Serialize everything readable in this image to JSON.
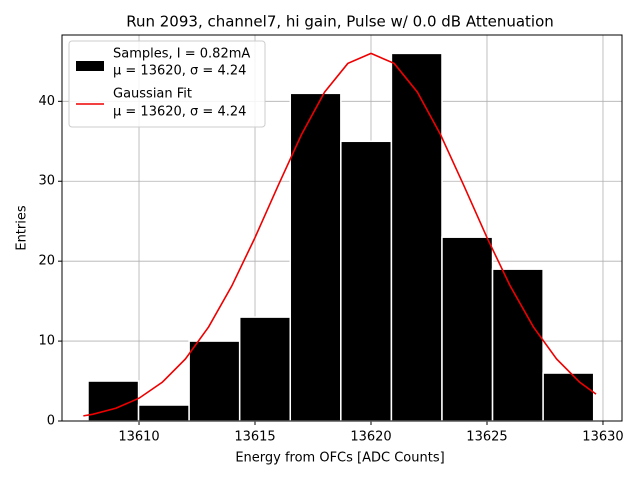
{
  "chart_data": {
    "type": "histogram",
    "title": "Run 2093, channel7, hi gain, Pulse w/ 0.0 dB Attenuation",
    "xlabel": "Energy from OFCs [ADC Counts]",
    "ylabel": "Entries",
    "bins": [
      13607.8,
      13609.98,
      13612.16,
      13614.34,
      13616.52,
      13618.7,
      13620.88,
      13623.06,
      13625.24,
      13627.42,
      13629.6
    ],
    "counts": [
      5,
      2,
      10,
      13,
      41,
      35,
      46,
      23,
      19,
      6
    ],
    "name": "Samples, I = 0.82mA",
    "name_line2": "μ = 13620, σ = 4.24",
    "color": "#000000",
    "edgecolor": "#ffffff",
    "fit": {
      "type": "line",
      "name": "Gaussian Fit",
      "name_line2": "μ = 13620, σ = 4.24",
      "color": "#ee0000",
      "x": [
        13607.6,
        13608,
        13609,
        13610,
        13611,
        13612,
        13613,
        13614,
        13615,
        13616,
        13617,
        13618,
        13619,
        13620,
        13621,
        13622,
        13623,
        13624,
        13625,
        13626,
        13627,
        13628,
        13629,
        13629.7
      ],
      "values": [
        0.64,
        0.84,
        1.59,
        2.85,
        4.84,
        7.76,
        11.77,
        16.9,
        22.95,
        29.48,
        35.82,
        41.16,
        44.74,
        46,
        44.74,
        41.16,
        35.82,
        29.48,
        22.95,
        16.9,
        11.77,
        7.76,
        4.84,
        3.36
      ]
    },
    "xlim": [
      13606.68,
      13630.82
    ],
    "ylim": [
      0,
      48.3
    ],
    "xticks": [
      13610,
      13615,
      13620,
      13625,
      13630
    ],
    "yticks": [
      0,
      10,
      20,
      30,
      40
    ],
    "grid": true,
    "legend": "upper left"
  }
}
